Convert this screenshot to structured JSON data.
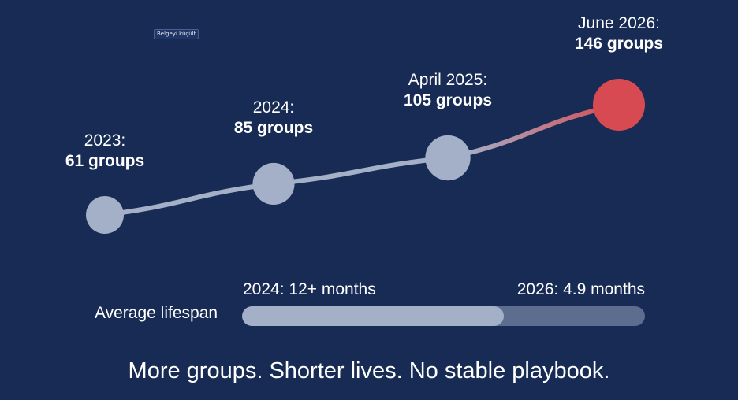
{
  "controls": {
    "shrink_button": "Belgeyi küçült"
  },
  "colors": {
    "background": "#172b54",
    "point": "#a3b0c8",
    "highlight": "#d84a52",
    "highlight_text": "#e4555c"
  },
  "chart_data": {
    "type": "line",
    "points": [
      {
        "date_label": "2023:",
        "value_label": "61 groups",
        "value": 61,
        "highlight": false
      },
      {
        "date_label": "2024:",
        "value_label": "85 groups",
        "value": 85,
        "highlight": false
      },
      {
        "date_label": "April 2025:",
        "value_label": "105 groups",
        "value": 105,
        "highlight": false
      },
      {
        "date_label": "June 2026:",
        "value_label": "146 groups",
        "value": 146,
        "highlight": true
      }
    ]
  },
  "lifespan": {
    "label": "Average lifespan",
    "start_label": "2024: 12+ months",
    "end_label": "2026: 4.9 months",
    "fill_fraction": 0.65
  },
  "tagline": "More groups. Shorter lives. No stable playbook."
}
